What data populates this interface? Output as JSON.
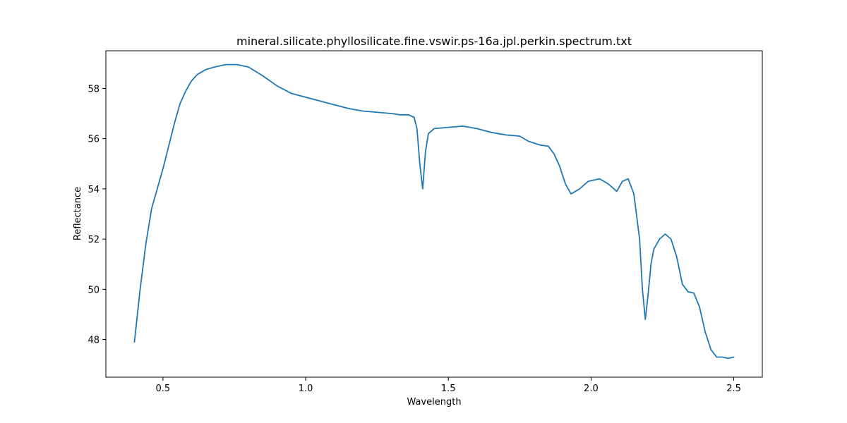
{
  "chart_data": {
    "type": "line",
    "title": "mineral.silicate.phyllosilicate.fine.vswir.ps-16a.jpl.perkin.spectrum.txt",
    "xlabel": "Wavelength",
    "ylabel": "Reflectance",
    "xlim": [
      0.3,
      2.6
    ],
    "ylim": [
      46.5,
      59.5
    ],
    "xticks": [
      0.5,
      1.0,
      1.5,
      2.0,
      2.5
    ],
    "xtick_labels": [
      "0.5",
      "1.0",
      "1.5",
      "2.0",
      "2.5"
    ],
    "yticks": [
      48,
      50,
      52,
      54,
      56,
      58
    ],
    "ytick_labels": [
      "48",
      "50",
      "52",
      "54",
      "56",
      "58"
    ],
    "grid": false,
    "series_color": "#1f77b4",
    "series": [
      {
        "x": [
          0.4,
          0.42,
          0.44,
          0.46,
          0.48,
          0.5,
          0.52,
          0.54,
          0.56,
          0.58,
          0.6,
          0.62,
          0.65,
          0.68,
          0.72,
          0.76,
          0.8,
          0.85,
          0.9,
          0.95,
          1.0,
          1.05,
          1.1,
          1.15,
          1.2,
          1.25,
          1.3,
          1.33,
          1.36,
          1.38,
          1.39,
          1.4,
          1.41,
          1.42,
          1.43,
          1.45,
          1.5,
          1.55,
          1.6,
          1.65,
          1.7,
          1.75,
          1.78,
          1.82,
          1.85,
          1.87,
          1.89,
          1.91,
          1.93,
          1.96,
          1.99,
          2.03,
          2.06,
          2.09,
          2.11,
          2.13,
          2.15,
          2.17,
          2.18,
          2.19,
          2.2,
          2.21,
          2.22,
          2.24,
          2.26,
          2.28,
          2.3,
          2.32,
          2.34,
          2.36,
          2.38,
          2.4,
          2.42,
          2.44,
          2.46,
          2.48,
          2.5
        ],
        "y": [
          47.9,
          50.0,
          51.8,
          53.2,
          54.0,
          54.8,
          55.7,
          56.6,
          57.4,
          57.9,
          58.3,
          58.55,
          58.75,
          58.85,
          58.95,
          58.95,
          58.85,
          58.5,
          58.1,
          57.8,
          57.65,
          57.5,
          57.35,
          57.2,
          57.1,
          57.05,
          57.0,
          56.95,
          56.95,
          56.85,
          56.4,
          55.0,
          54.0,
          55.5,
          56.2,
          56.4,
          56.45,
          56.5,
          56.4,
          56.25,
          56.15,
          56.1,
          55.9,
          55.75,
          55.7,
          55.4,
          54.9,
          54.2,
          53.8,
          54.0,
          54.3,
          54.4,
          54.2,
          53.9,
          54.3,
          54.4,
          53.8,
          52.0,
          50.0,
          48.8,
          49.8,
          51.0,
          51.6,
          52.0,
          52.2,
          52.0,
          51.3,
          50.2,
          49.9,
          49.85,
          49.3,
          48.3,
          47.6,
          47.3,
          47.3,
          47.25,
          47.3
        ]
      }
    ]
  }
}
